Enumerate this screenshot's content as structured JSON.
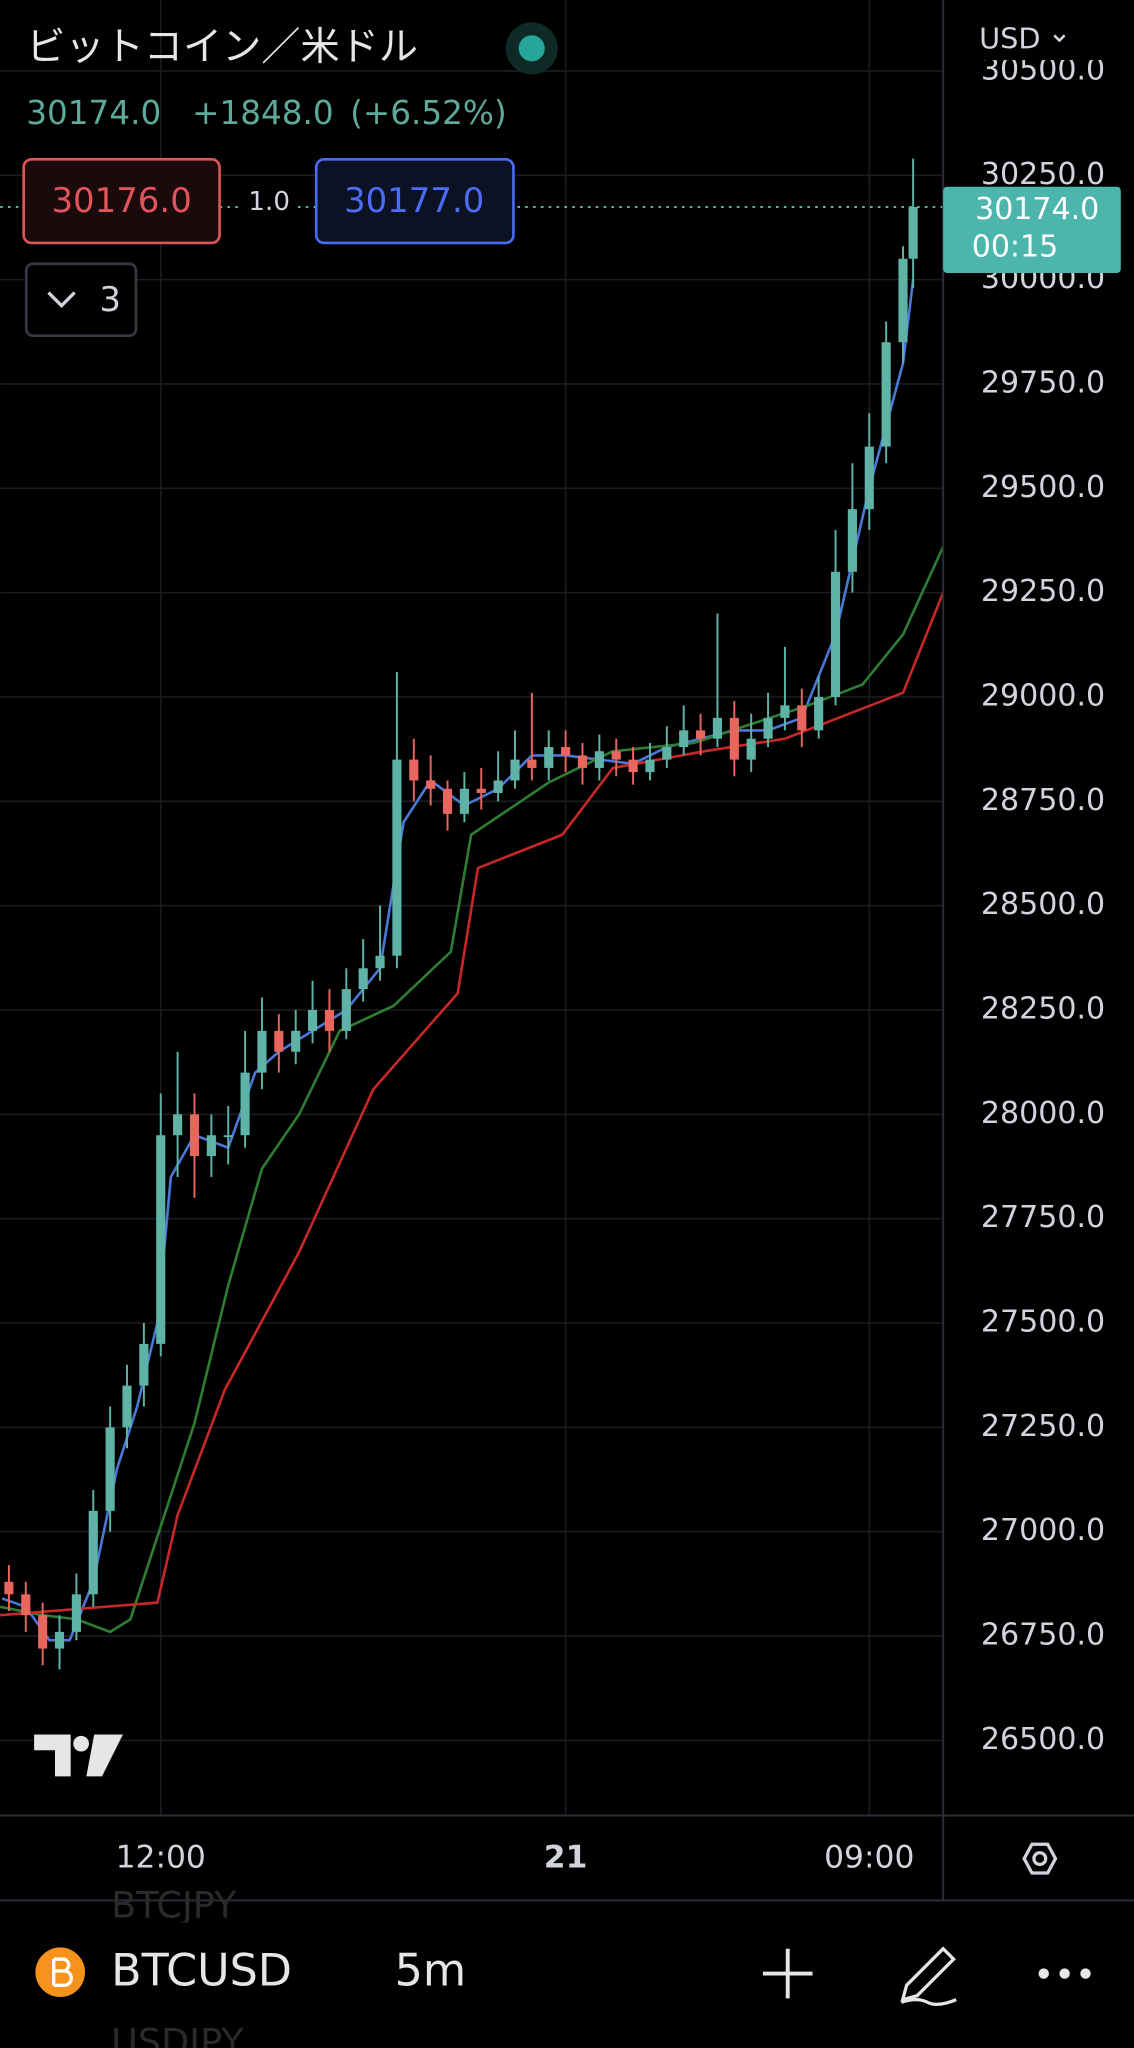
{
  "header": {
    "title": "ビットコイン／米ドル",
    "price": "30174.0",
    "change": "+1848.0",
    "change_pct": "(+6.52%)",
    "sell": "30176.0",
    "spread": "1.0",
    "buy": "30177.0",
    "indicators": "3",
    "currency": "USD"
  },
  "price_tag": {
    "price": "30174.0",
    "countdown": "00:15"
  },
  "chart_data": {
    "type": "candlestick",
    "xlim": [
      7.24,
      35.19
    ],
    "xticks": [
      {
        "value": 12,
        "label": "12:00"
      },
      {
        "value": 24,
        "label": "21"
      },
      {
        "value": 33,
        "label": "09:00"
      }
    ],
    "ylim": [
      26320,
      30670
    ],
    "yticks": [
      {
        "value": 26500,
        "label": "26500.0"
      },
      {
        "value": 26750,
        "label": "26750.0"
      },
      {
        "value": 27000,
        "label": "27000.0"
      },
      {
        "value": 27250,
        "label": "27250.0"
      },
      {
        "value": 27500,
        "label": "27500.0"
      },
      {
        "value": 27750,
        "label": "27750.0"
      },
      {
        "value": 28000,
        "label": "28000.0"
      },
      {
        "value": 28250,
        "label": "28250.0"
      },
      {
        "value": 28500,
        "label": "28500.0"
      },
      {
        "value": 28750,
        "label": "28750.0"
      },
      {
        "value": 29000,
        "label": "29000.0"
      },
      {
        "value": 29250,
        "label": "29250.0"
      },
      {
        "value": 29500,
        "label": "29500.0"
      },
      {
        "value": 29750,
        "label": "29750.0"
      },
      {
        "value": 30000,
        "label": "30000.0"
      },
      {
        "value": 30250,
        "label": "30250.0"
      },
      {
        "value": 30500,
        "label": "30500.0"
      }
    ],
    "grid": true,
    "up_color": "#5fb3a6",
    "down_color": "#e8665e",
    "last_price": 30174,
    "x": [
      7.5,
      8,
      8.5,
      9,
      9.5,
      10,
      10.5,
      11,
      11.5,
      12,
      12.5,
      13,
      13.5,
      14,
      14.5,
      15,
      15.5,
      16,
      16.5,
      17,
      17.5,
      18,
      18.5,
      19,
      19.5,
      20,
      20.5,
      21,
      21.5,
      22,
      22.5,
      23,
      23.5,
      24,
      24.5,
      25,
      25.5,
      26,
      26.5,
      27,
      27.5,
      28,
      28.5,
      29,
      29.5,
      30,
      30.5,
      31,
      31.5,
      32,
      32.5,
      33,
      33.5,
      34,
      34.3
    ],
    "ohlc": [
      [
        26880,
        26920,
        26810,
        26850
      ],
      [
        26850,
        26880,
        26760,
        26800
      ],
      [
        26800,
        26830,
        26680,
        26720
      ],
      [
        26720,
        26800,
        26670,
        26760
      ],
      [
        26760,
        26900,
        26740,
        26850
      ],
      [
        26850,
        27100,
        26820,
        27050
      ],
      [
        27050,
        27300,
        27000,
        27250
      ],
      [
        27250,
        27400,
        27200,
        27350
      ],
      [
        27350,
        27500,
        27300,
        27450
      ],
      [
        27450,
        28050,
        27420,
        27950
      ],
      [
        27950,
        28150,
        27850,
        28000
      ],
      [
        28000,
        28050,
        27800,
        27900
      ],
      [
        27900,
        28000,
        27850,
        27950
      ],
      [
        27950,
        28020,
        27880,
        27950
      ],
      [
        27950,
        28200,
        27920,
        28100
      ],
      [
        28100,
        28280,
        28060,
        28200
      ],
      [
        28200,
        28240,
        28100,
        28150
      ],
      [
        28150,
        28250,
        28120,
        28200
      ],
      [
        28200,
        28320,
        28170,
        28250
      ],
      [
        28250,
        28300,
        28150,
        28200
      ],
      [
        28200,
        28350,
        28180,
        28300
      ],
      [
        28300,
        28420,
        28270,
        28350
      ],
      [
        28350,
        28500,
        28320,
        28380
      ],
      [
        28380,
        29060,
        28350,
        28850
      ],
      [
        28850,
        28900,
        28750,
        28800
      ],
      [
        28800,
        28860,
        28740,
        28780
      ],
      [
        28780,
        28800,
        28680,
        28720
      ],
      [
        28720,
        28820,
        28700,
        28780
      ],
      [
        28780,
        28830,
        28730,
        28770
      ],
      [
        28770,
        28870,
        28750,
        28800
      ],
      [
        28800,
        28920,
        28780,
        28850
      ],
      [
        28850,
        29010,
        28800,
        28830
      ],
      [
        28830,
        28920,
        28800,
        28880
      ],
      [
        28880,
        28920,
        28820,
        28860
      ],
      [
        28860,
        28890,
        28790,
        28830
      ],
      [
        28830,
        28910,
        28800,
        28870
      ],
      [
        28870,
        28900,
        28810,
        28850
      ],
      [
        28850,
        28880,
        28790,
        28820
      ],
      [
        28820,
        28890,
        28800,
        28850
      ],
      [
        28850,
        28930,
        28830,
        28880
      ],
      [
        28880,
        28980,
        28860,
        28920
      ],
      [
        28920,
        28960,
        28860,
        28900
      ],
      [
        28900,
        29200,
        28880,
        28950
      ],
      [
        28950,
        28990,
        28810,
        28850
      ],
      [
        28850,
        28960,
        28820,
        28900
      ],
      [
        28900,
        29010,
        28880,
        28950
      ],
      [
        28950,
        29120,
        28920,
        28980
      ],
      [
        28980,
        29020,
        28880,
        28920
      ],
      [
        28920,
        29050,
        28900,
        29000
      ],
      [
        29000,
        29400,
        28980,
        29300
      ],
      [
        29300,
        29560,
        29250,
        29450
      ],
      [
        29450,
        29680,
        29400,
        29600
      ],
      [
        29600,
        29900,
        29560,
        29850
      ],
      [
        29850,
        30080,
        29800,
        30050
      ],
      [
        30050,
        30290,
        29980,
        30174
      ]
    ],
    "series": [
      {
        "color": "#4a78d6",
        "x": [
          7.3,
          8,
          8.7,
          9.3,
          10,
          10.7,
          11.3,
          11.9,
          12.3,
          13,
          14,
          14.8,
          15.5,
          16.5,
          17.5,
          18.5,
          19.2,
          20,
          21,
          22,
          23,
          24,
          25,
          26,
          27,
          28,
          29,
          30,
          31,
          32,
          33,
          34,
          34.3
        ],
        "values": [
          26840,
          26820,
          26740,
          26740,
          26880,
          27150,
          27300,
          27500,
          27850,
          27950,
          27920,
          28100,
          28150,
          28200,
          28250,
          28350,
          28700,
          28800,
          28740,
          28780,
          28860,
          28860,
          28850,
          28840,
          28880,
          28900,
          28920,
          28920,
          28950,
          29150,
          29500,
          29800,
          30000
        ]
      },
      {
        "color": "#2e7d32",
        "x": [
          7.24,
          8.5,
          9.5,
          10.5,
          11.1,
          13,
          14,
          15,
          16.1,
          17.3,
          18.9,
          20.6,
          21.2,
          23.5,
          25.4,
          27.8,
          31.2,
          32.8,
          34,
          35.19
        ],
        "values": [
          26820,
          26800,
          26790,
          26760,
          26790,
          27260,
          27590,
          27870,
          28000,
          28200,
          28260,
          28390,
          28670,
          28795,
          28870,
          28890,
          28980,
          29030,
          29150,
          29360
        ]
      },
      {
        "color": "#c62828",
        "x": [
          7.24,
          11.9,
          12.5,
          13.9,
          16.1,
          18.3,
          20.8,
          21.4,
          23.9,
          25.4,
          28.1,
          30.5,
          34,
          35.19
        ],
        "values": [
          26800,
          26830,
          27040,
          27340,
          27670,
          28060,
          28290,
          28590,
          28670,
          28830,
          28870,
          28900,
          29010,
          29250
        ]
      }
    ]
  },
  "toolbar": {
    "symbol": "BTCUSD",
    "interval": "5m",
    "prev_symbol": "BTCJPY",
    "next_symbol": "USDJPY"
  }
}
